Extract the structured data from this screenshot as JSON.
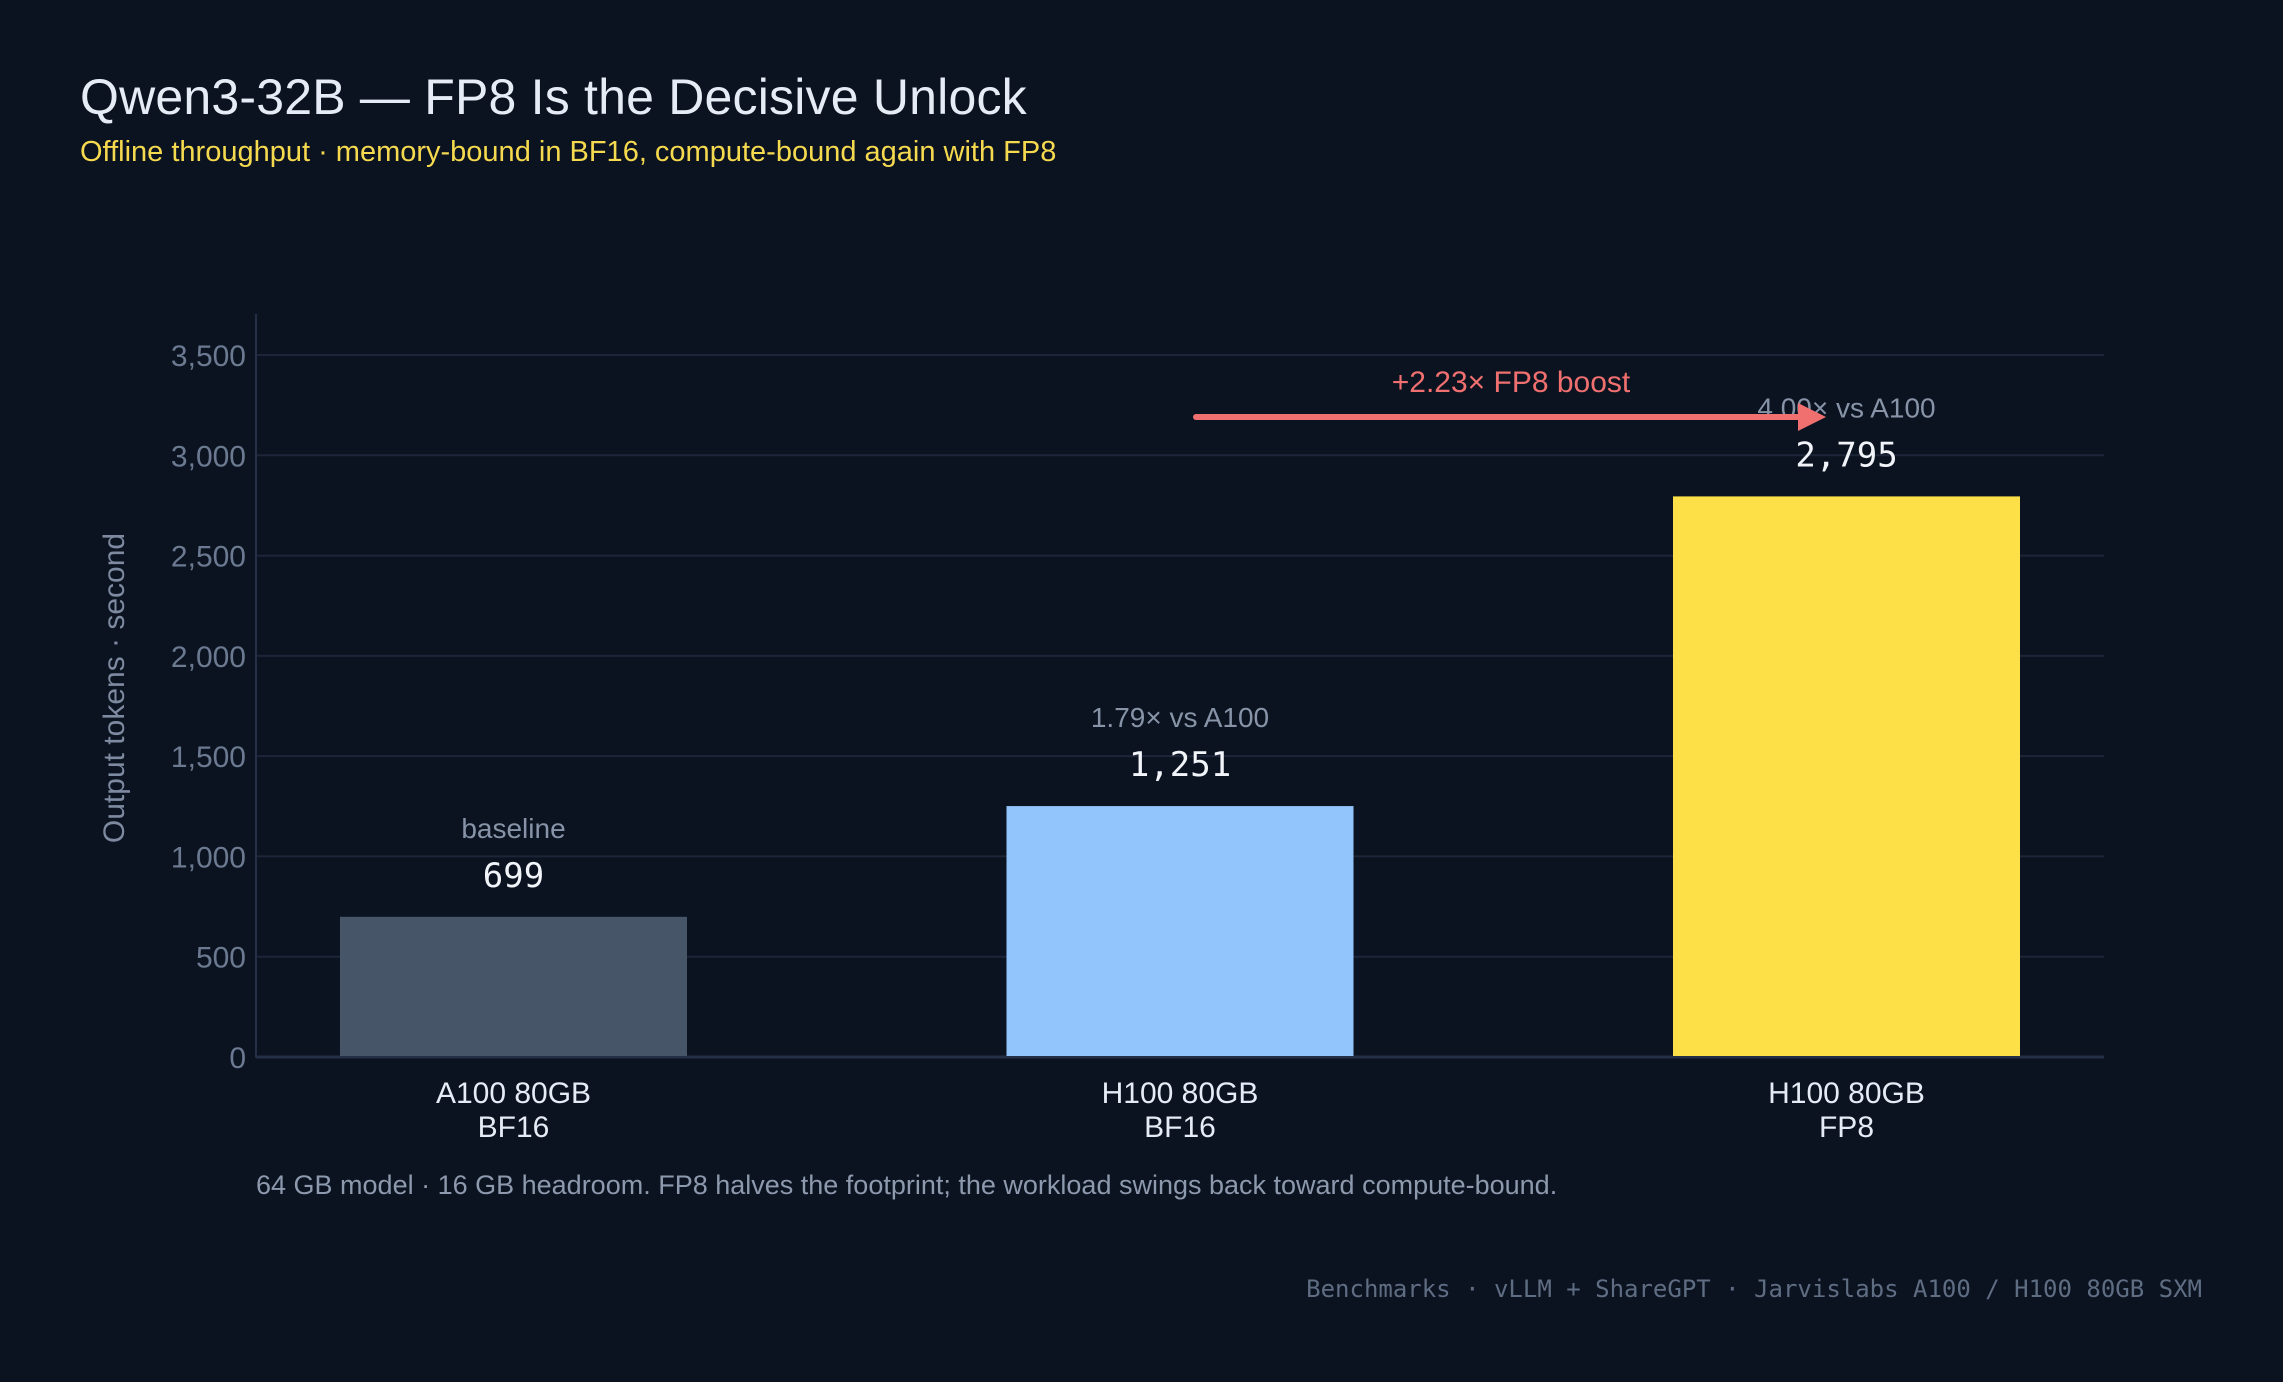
{
  "title": "Qwen3-32B — FP8 Is the Decisive Unlock",
  "subtitle": "Offline throughput · memory-bound in BF16, compute-bound again with FP8",
  "footnote": "64 GB model · 16 GB headroom. FP8 halves the footprint; the workload swings back toward compute-bound.",
  "credits": "Benchmarks · vLLM + ShareGPT · Jarvislabs A100 / H100 80GB SXM",
  "colors": {
    "background": "#0b1220",
    "grid": "#1c2638",
    "axis": "#243048",
    "arrow": "#f07070"
  },
  "chart_data": {
    "type": "bar",
    "title": "Qwen3-32B — FP8 Is the Decisive Unlock",
    "subtitle": "Offline throughput · memory-bound in BF16, compute-bound again with FP8",
    "xlabel": "",
    "ylabel": "Output tokens · second",
    "ylim": [
      0,
      3500
    ],
    "yticks": [
      0,
      500,
      1000,
      1500,
      2000,
      2500,
      3000,
      3500
    ],
    "ytick_labels": [
      "0",
      "500",
      "1,000",
      "1,500",
      "2,000",
      "2,500",
      "3,000",
      "3,500"
    ],
    "grid": true,
    "legend": "none",
    "categories": [
      {
        "line1": "A100 80GB",
        "line2": "BF16"
      },
      {
        "line1": "H100 80GB",
        "line2": "BF16"
      },
      {
        "line1": "H100 80GB",
        "line2": "FP8"
      }
    ],
    "values": [
      699,
      1251,
      2795
    ],
    "value_labels": [
      "699",
      "1,251",
      "2,795"
    ],
    "bar_notes": [
      "baseline",
      "1.79× vs A100",
      "4.00× vs A100"
    ],
    "bar_colors": [
      "#475569",
      "#93c5fd",
      "#fde047"
    ],
    "annotations": [
      {
        "text": "+2.23× FP8 boost",
        "type": "arrow",
        "from_category": 1,
        "to_category": 2,
        "y": 3200
      }
    ]
  }
}
